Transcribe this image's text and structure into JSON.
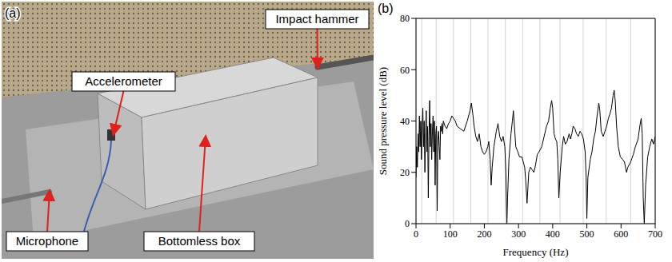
{
  "panel_a": {
    "letter": "(a)",
    "labels": [
      "Accelerometer",
      "Impact hammer",
      "Microphone",
      "Bottomless box"
    ]
  },
  "chart_data": {
    "letter": "(b)",
    "type": "line",
    "x_label": "Frequency (Hz)",
    "y_label": "Sound pressure level (dB)",
    "xlim": [
      0,
      700
    ],
    "xticks": [
      0,
      100,
      200,
      300,
      400,
      500,
      600,
      700
    ],
    "ylim": [
      0,
      80
    ],
    "yticks": [
      0,
      20,
      40,
      60,
      80
    ],
    "grid": true,
    "color": "#000000",
    "x": [
      0,
      2,
      4,
      6,
      8,
      10,
      12,
      14,
      16,
      18,
      20,
      22,
      24,
      26,
      28,
      30,
      32,
      34,
      36,
      38,
      40,
      42,
      44,
      46,
      48,
      50,
      52,
      54,
      56,
      58,
      60,
      62,
      64,
      66,
      68,
      70,
      72,
      74,
      76,
      78,
      80,
      85,
      90,
      95,
      100,
      105,
      110,
      115,
      120,
      130,
      140,
      150,
      158,
      162,
      166,
      170,
      175,
      180,
      185,
      190,
      195,
      200,
      205,
      210,
      213,
      217,
      220,
      223,
      228,
      235,
      240,
      245,
      250,
      255,
      260,
      263,
      266,
      268,
      272,
      278,
      282,
      285,
      288,
      292,
      298,
      303,
      310,
      318,
      321,
      325,
      330,
      335,
      340,
      345,
      350,
      355,
      360,
      368,
      375,
      382,
      388,
      393,
      397,
      400,
      404,
      408,
      412,
      415,
      418,
      422,
      428,
      432,
      437,
      442,
      448,
      452,
      456,
      460,
      465,
      470,
      475,
      480,
      485,
      490,
      495,
      498,
      500,
      503,
      510,
      515,
      520,
      525,
      530,
      535,
      538,
      542,
      548,
      553,
      558,
      563,
      568,
      572,
      577,
      580,
      583,
      587,
      592,
      598,
      605,
      610,
      616,
      620,
      628,
      636,
      642,
      650,
      655,
      659,
      662,
      665,
      668,
      672,
      678,
      684,
      690,
      695,
      700
    ],
    "values": [
      18,
      30,
      22,
      35,
      28,
      42,
      30,
      40,
      25,
      38,
      45,
      30,
      40,
      20,
      36,
      44,
      28,
      38,
      10,
      34,
      48,
      30,
      39,
      25,
      36,
      42,
      28,
      40,
      15,
      35,
      38,
      5,
      33,
      36,
      30,
      25,
      38,
      36,
      39,
      35,
      40,
      38,
      37,
      39,
      40,
      42,
      41,
      40,
      38,
      37,
      36,
      40,
      44,
      47,
      43,
      38,
      34,
      32,
      35,
      30,
      28,
      27,
      28,
      30,
      32,
      25,
      15,
      22,
      30,
      36,
      39,
      34,
      32,
      34,
      30,
      20,
      0,
      10,
      25,
      35,
      40,
      44,
      38,
      30,
      28,
      26,
      26,
      22,
      17,
      8,
      20,
      22,
      21,
      20,
      23,
      27,
      28,
      30,
      34,
      38,
      40,
      45,
      48,
      45,
      35,
      33,
      32,
      25,
      10,
      20,
      30,
      34,
      31,
      32,
      35,
      33,
      35,
      38,
      37,
      35,
      34,
      36,
      35,
      33,
      28,
      18,
      2,
      18,
      25,
      28,
      33,
      36,
      42,
      47,
      44,
      36,
      34,
      36,
      38,
      41,
      43,
      45,
      50,
      52,
      48,
      38,
      30,
      26,
      25,
      24,
      20,
      22,
      24,
      27,
      30,
      33,
      38,
      41,
      35,
      10,
      0,
      15,
      26,
      30,
      33,
      31,
      34
    ]
  }
}
